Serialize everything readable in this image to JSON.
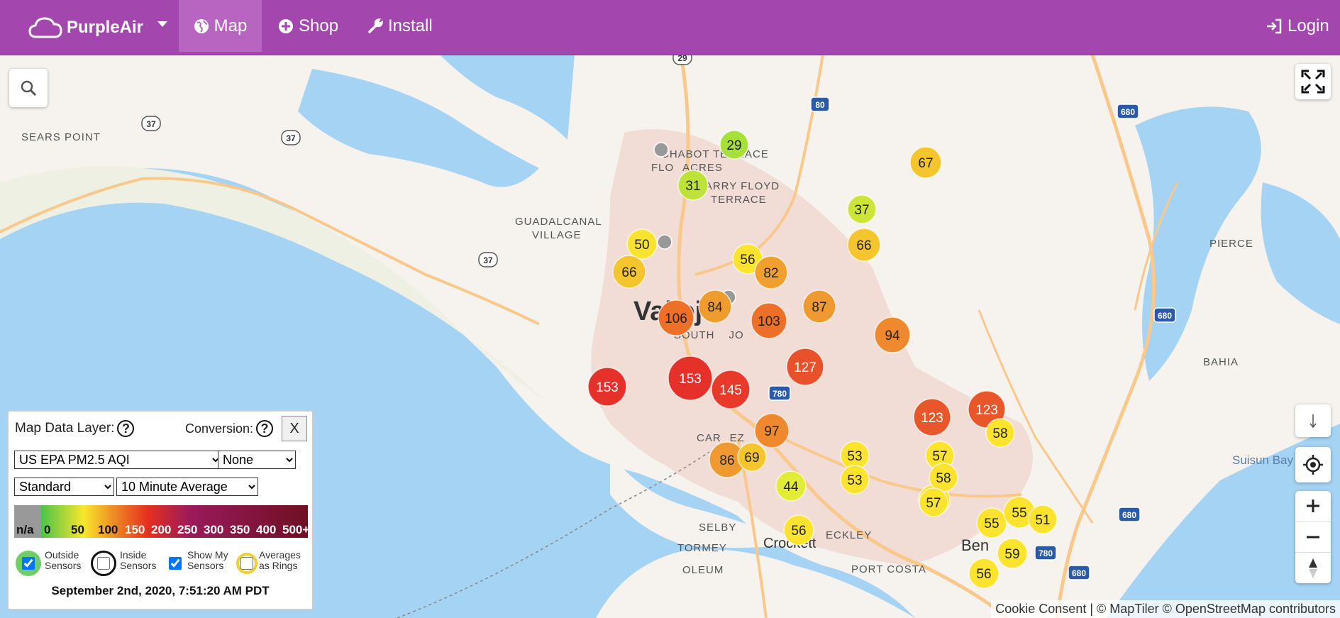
{
  "nav": {
    "brand": "PurpleAir",
    "items": [
      {
        "label": "Map",
        "icon": "globe-icon",
        "active": true
      },
      {
        "label": "Shop",
        "icon": "plus-circle-icon"
      },
      {
        "label": "Install",
        "icon": "wrench-icon"
      }
    ],
    "login": "Login"
  },
  "map": {
    "places": [
      {
        "name": "SEARS POINT"
      },
      {
        "name": "CHABOT TERRACE"
      },
      {
        "name": "FLO   ACRES"
      },
      {
        "name": "HARRY FLOYD"
      },
      {
        "name": "TERRACE"
      },
      {
        "name": "GUADALCANAL"
      },
      {
        "name": "VILLAGE"
      },
      {
        "name": "Vallejo"
      },
      {
        "name": "SOUTH     JO"
      },
      {
        "name": "CAR   EZ"
      },
      {
        "name": "SELBY"
      },
      {
        "name": "Crockett"
      },
      {
        "name": "ECKLEY"
      },
      {
        "name": "TORMEY"
      },
      {
        "name": "OLEUM"
      },
      {
        "name": "PORT COSTA"
      },
      {
        "name": "Ben"
      },
      {
        "name": "PIERCE"
      },
      {
        "name": "BAHIA"
      },
      {
        "name": "Suisun Bay"
      }
    ],
    "shields": [
      "29",
      "37",
      "37",
      "37",
      "80",
      "680",
      "680",
      "680",
      "780",
      "780",
      "680"
    ],
    "sensors": [
      {
        "aqi": 29,
        "color": "#a8e03a"
      },
      {
        "aqi": 31,
        "color": "#bde338"
      },
      {
        "aqi": 37,
        "color": "#cde536"
      },
      {
        "aqi": 67,
        "color": "#f4c52c"
      },
      {
        "aqi": 50,
        "color": "#f8e32f"
      },
      {
        "aqi": 66,
        "color": "#f4c52c"
      },
      {
        "aqi": 56,
        "color": "#fbe32e"
      },
      {
        "aqi": 82,
        "color": "#f0a030"
      },
      {
        "aqi": 66,
        "color": "#f4c52c"
      },
      {
        "aqi": 84,
        "color": "#ef9c2f"
      },
      {
        "aqi": 106,
        "color": "#ec7028"
      },
      {
        "aqi": 103,
        "color": "#ec7028"
      },
      {
        "aqi": 87,
        "color": "#ef9a2f"
      },
      {
        "aqi": 94,
        "color": "#ee8a2d"
      },
      {
        "aqi": 153,
        "color": "#e6302a"
      },
      {
        "aqi": 153,
        "color": "#e6302a"
      },
      {
        "aqi": 145,
        "color": "#e8392a"
      },
      {
        "aqi": 127,
        "color": "#e85129"
      },
      {
        "aqi": 97,
        "color": "#ee8a2d"
      },
      {
        "aqi": 123,
        "color": "#e85629"
      },
      {
        "aqi": 123,
        "color": "#e85629"
      },
      {
        "aqi": 58,
        "color": "#fbe32e"
      },
      {
        "aqi": 86,
        "color": "#ef9a2f"
      },
      {
        "aqi": 69,
        "color": "#f4c52c"
      },
      {
        "aqi": 53,
        "color": "#fbe32e"
      },
      {
        "aqi": 53,
        "color": "#fbe32e"
      },
      {
        "aqi": 57,
        "color": "#fbe32e"
      },
      {
        "aqi": 57,
        "color": "#fbe32e"
      },
      {
        "aqi": 58,
        "color": "#fbe32e"
      },
      {
        "aqi": 57,
        "color": "#fbe32e"
      },
      {
        "aqi": 44,
        "color": "#e2ec34"
      },
      {
        "aqi": 56,
        "color": "#fbe32e"
      },
      {
        "aqi": 55,
        "color": "#fbe32e"
      },
      {
        "aqi": 55,
        "color": "#fbe32e"
      },
      {
        "aqi": 51,
        "color": "#fbe32e"
      },
      {
        "aqi": 59,
        "color": "#fbe32e"
      },
      {
        "aqi": 56,
        "color": "#fbe32e"
      }
    ]
  },
  "panel": {
    "map_data_layer_label": "Map Data Layer:",
    "conversion_label": "Conversion:",
    "help_symbol": "?",
    "close_label": "X",
    "layer_value": "US EPA PM2.5 AQI",
    "conversion_value": "None",
    "scale_value": "Standard",
    "average_value": "10 Minute Average",
    "legend": {
      "labels": [
        "n/a",
        "0",
        "50",
        "100",
        "150",
        "200",
        "250",
        "300",
        "350",
        "400",
        "500+"
      ],
      "colors": [
        "#999999",
        "#4dc348",
        "#f8e72c",
        "#ec7e24",
        "#e53020",
        "#9a1a5a",
        "#7e1238"
      ]
    },
    "options": {
      "outside": "Outside\nSensors",
      "inside": "Inside\nSensors",
      "show_mine": "Show My\nSensors",
      "rings": "Averages\nas Rings"
    },
    "timestamp": "September 2nd, 2020, 7:51:20 AM PDT"
  },
  "attribution": "Cookie Consent | © MapTiler © OpenStreetMap contributors",
  "colors": {
    "nav": "#a346ad",
    "water": "#a4d3f4",
    "land": "#f6f3ee",
    "urban": "#f1dcd6"
  }
}
